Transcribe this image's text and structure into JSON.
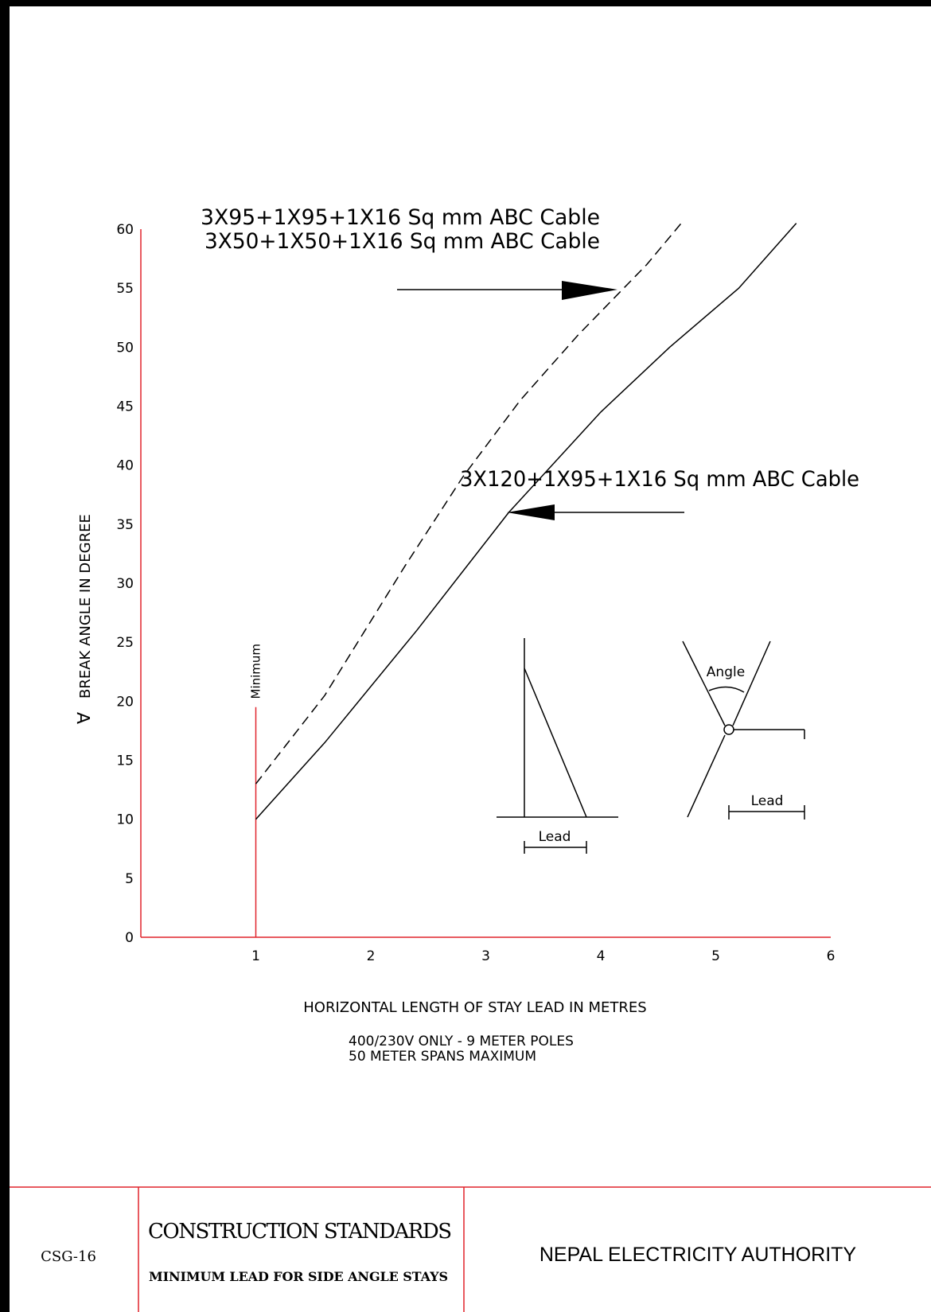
{
  "chart_data": {
    "type": "line",
    "xlabel": "HORIZONTAL LENGTH OF STAY LEAD IN METRES",
    "ylabel": "BREAK ANGLE IN DEGREE",
    "ylabel_symbol": "∀",
    "xlim": [
      0,
      6
    ],
    "ylim": [
      0,
      60
    ],
    "xticks": [
      "1",
      "2",
      "3",
      "4",
      "5",
      "6"
    ],
    "yticks": [
      "0",
      "5",
      "10",
      "15",
      "20",
      "25",
      "30",
      "35",
      "40",
      "45",
      "50",
      "55",
      "60"
    ],
    "grid": false,
    "minimum_marker": {
      "x": 1,
      "ymax": 19.5,
      "label": "Minimum"
    },
    "series": [
      {
        "name": "3X95+1X95+1X16 Sq mm ABC Cable / 3X50+1X50+1X16 Sq mm ABC Cable",
        "style": "dashed",
        "x": [
          1.0,
          1.6,
          2.3,
          2.8,
          3.3,
          3.8,
          4.4,
          4.7
        ],
        "y": [
          13.0,
          20.5,
          31.5,
          39.0,
          45.5,
          51.0,
          57.0,
          60.5
        ]
      },
      {
        "name": "3X120+1X95+1X16 Sq mm ABC Cable",
        "style": "solid",
        "x": [
          1.0,
          1.6,
          2.4,
          3.2,
          4.0,
          4.6,
          5.2,
          5.7
        ],
        "y": [
          10.0,
          16.5,
          26.0,
          36.0,
          44.5,
          50.0,
          55.0,
          60.5
        ]
      }
    ],
    "annotations": {
      "top_label_1": "3X95+1X95+1X16 Sq mm ABC Cable",
      "top_label_2": "3X50+1X50+1X16 Sq mm ABC Cable",
      "middle_label": "3X120+1X95+1X16 Sq mm ABC Cable",
      "note_1": "400/230V ONLY - 9 METER POLES",
      "note_2": "50 METER SPANS MAXIMUM"
    },
    "colors": {
      "axes": "#e0242c",
      "lines": "#000000"
    }
  },
  "inset": {
    "lead_label_left": "Lead",
    "lead_label_right": "Lead",
    "angle_label": "Angle"
  },
  "title_block": {
    "code": "CSG-16",
    "title": "CONSTRUCTION  STANDARDS",
    "subtitle": "MINIMUM  LEAD  FOR  SIDE  ANGLE  STAYS",
    "organization": "NEPAL ELECTRICITY AUTHORITY"
  }
}
